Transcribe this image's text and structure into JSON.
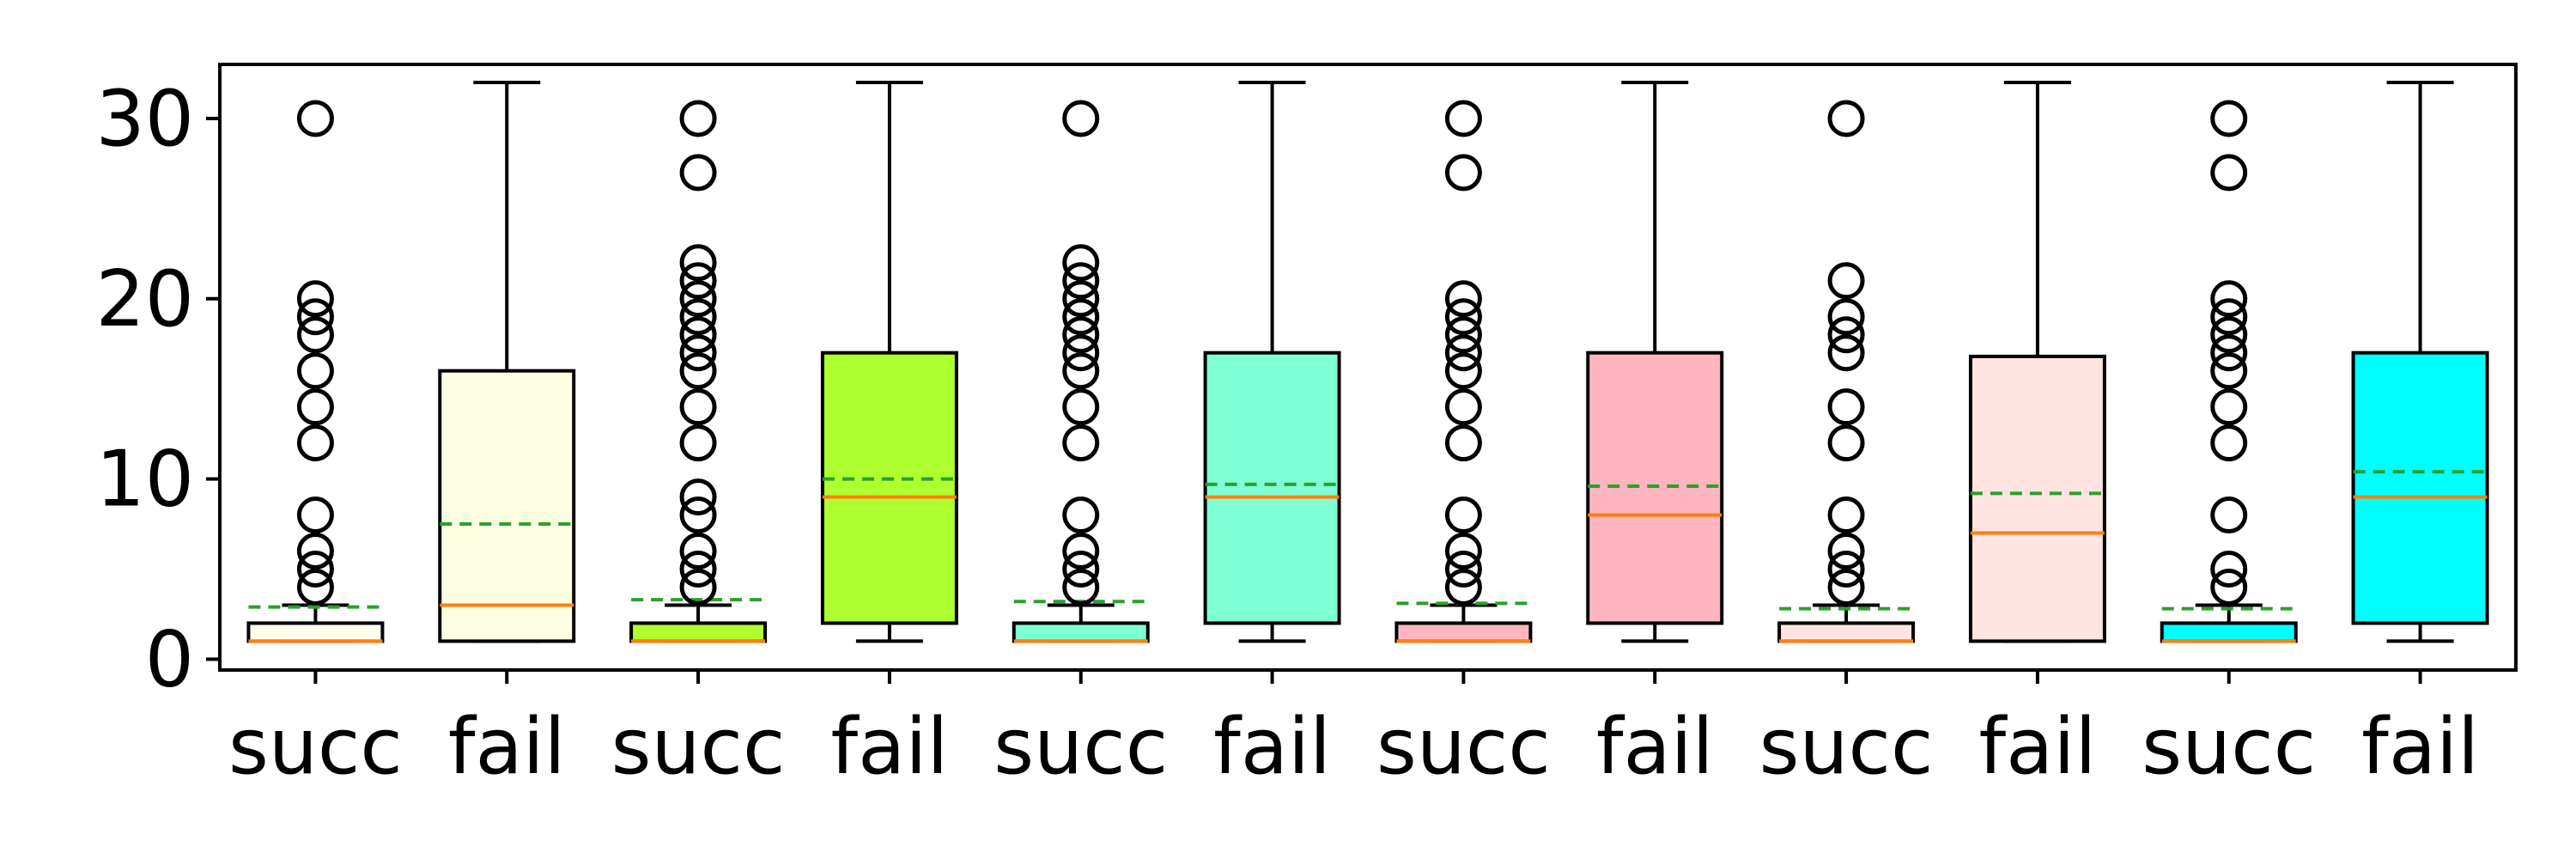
{
  "chart_data": {
    "type": "box",
    "title": "",
    "xlabel": "",
    "ylabel": "",
    "ylim": [
      -0.6,
      33.0
    ],
    "yticks": [
      0,
      10,
      20,
      30
    ],
    "grid": false,
    "legend": "none",
    "categories": [
      "succ",
      "fail",
      "succ",
      "fail",
      "succ",
      "fail",
      "succ",
      "fail",
      "succ",
      "fail",
      "succ",
      "fail"
    ],
    "boxes": [
      {
        "label": "succ",
        "color": "#fffff0",
        "q1": 1,
        "median": 1,
        "q3": 2,
        "mean": 2.9,
        "whisker_low": 1,
        "whisker_high": 3,
        "outliers": [
          4,
          5,
          6,
          8,
          12,
          14,
          16,
          18,
          19,
          20,
          30
        ]
      },
      {
        "label": "fail",
        "color": "#fdfde2",
        "q1": 1,
        "median": 3,
        "q3": 16,
        "mean": 7.5,
        "whisker_low": 1,
        "whisker_high": 32,
        "outliers": []
      },
      {
        "label": "succ",
        "color": "#adff2f",
        "q1": 1,
        "median": 1,
        "q3": 2,
        "mean": 3.3,
        "whisker_low": 1,
        "whisker_high": 3,
        "outliers": [
          4,
          5,
          6,
          8,
          9,
          12,
          14,
          16,
          17,
          18,
          19,
          20,
          21,
          22,
          27,
          30
        ]
      },
      {
        "label": "fail",
        "color": "#adff2f",
        "q1": 2,
        "median": 9,
        "q3": 17,
        "mean": 10.0,
        "whisker_low": 1,
        "whisker_high": 32,
        "outliers": []
      },
      {
        "label": "succ",
        "color": "#7fffd4",
        "q1": 1,
        "median": 1,
        "q3": 2,
        "mean": 3.2,
        "whisker_low": 1,
        "whisker_high": 3,
        "outliers": [
          4,
          5,
          6,
          8,
          12,
          14,
          16,
          17,
          18,
          19,
          20,
          21,
          22,
          30
        ]
      },
      {
        "label": "fail",
        "color": "#7fffd4",
        "q1": 2,
        "median": 9,
        "q3": 17,
        "mean": 9.7,
        "whisker_low": 1,
        "whisker_high": 32,
        "outliers": []
      },
      {
        "label": "succ",
        "color": "#ffb6c1",
        "q1": 1,
        "median": 1,
        "q3": 2,
        "mean": 3.1,
        "whisker_low": 1,
        "whisker_high": 3,
        "outliers": [
          4,
          5,
          6,
          8,
          12,
          14,
          16,
          17,
          18,
          19,
          20,
          27,
          30
        ]
      },
      {
        "label": "fail",
        "color": "#ffb6c1",
        "q1": 2,
        "median": 8,
        "q3": 17,
        "mean": 9.6,
        "whisker_low": 1,
        "whisker_high": 32,
        "outliers": []
      },
      {
        "label": "succ",
        "color": "#ffe4e1",
        "q1": 1,
        "median": 1,
        "q3": 2,
        "mean": 2.8,
        "whisker_low": 1,
        "whisker_high": 3,
        "outliers": [
          4,
          5,
          6,
          8,
          12,
          14,
          17,
          18,
          19,
          21,
          30
        ]
      },
      {
        "label": "fail",
        "color": "#ffe4e1",
        "q1": 1,
        "median": 7,
        "q3": 16.8,
        "mean": 9.2,
        "whisker_low": 1,
        "whisker_high": 32,
        "outliers": []
      },
      {
        "label": "succ",
        "color": "#00ffff",
        "q1": 1,
        "median": 1,
        "q3": 2,
        "mean": 2.8,
        "whisker_low": 1,
        "whisker_high": 3,
        "outliers": [
          4,
          5,
          8,
          12,
          14,
          16,
          17,
          18,
          19,
          20,
          27,
          30
        ]
      },
      {
        "label": "fail",
        "color": "#00ffff",
        "q1": 2,
        "median": 9,
        "q3": 17,
        "mean": 10.4,
        "whisker_low": 1,
        "whisker_high": 32,
        "outliers": []
      }
    ],
    "median_color": "#ff7f0e",
    "mean_color": "#2ca02c"
  }
}
